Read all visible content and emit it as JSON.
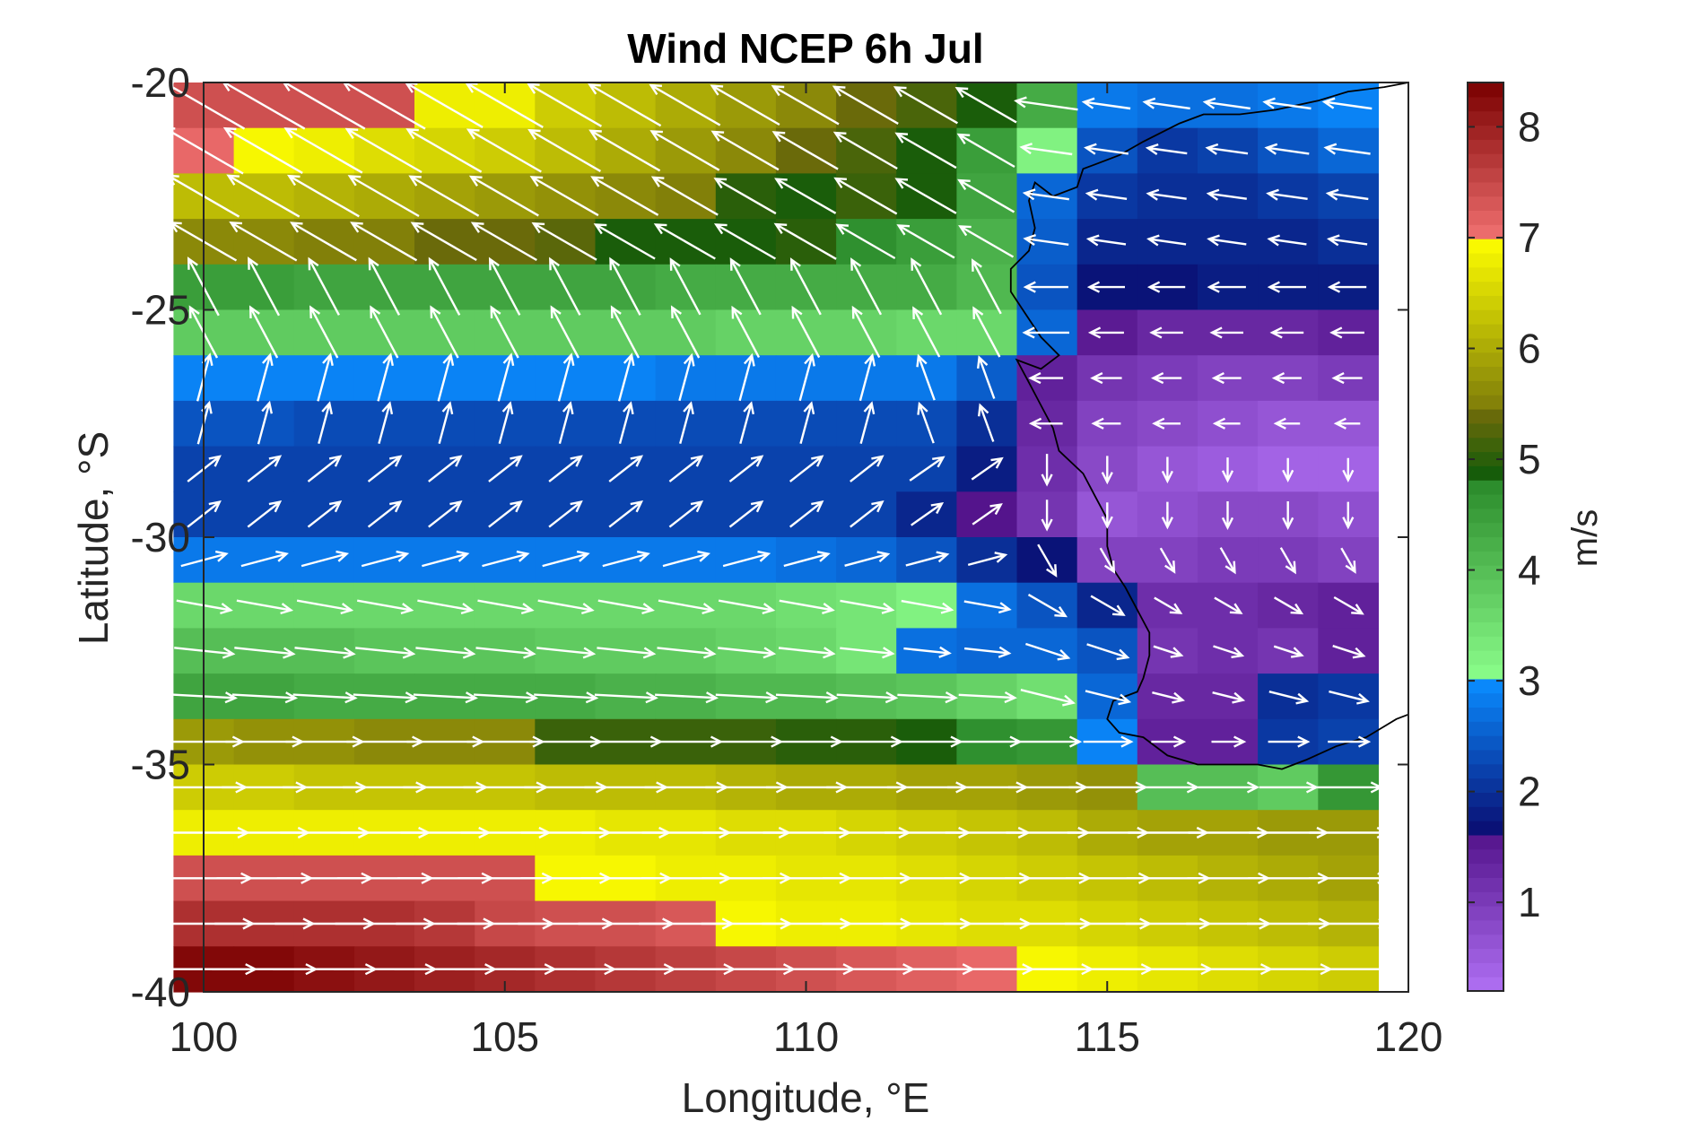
{
  "chart_data": {
    "type": "heatmap",
    "title": "Wind NCEP 6h Jul",
    "xlabel": "Longitude, °E",
    "ylabel": "Latitude, °S",
    "colorbar_label": "m/s",
    "xlim": [
      100,
      120
    ],
    "ylim": [
      -40,
      -20
    ],
    "xticks": [
      100,
      105,
      110,
      115,
      120
    ],
    "yticks": [
      -20,
      -25,
      -30,
      -35,
      -40
    ],
    "xtick_labels": [
      "100",
      "105",
      "110",
      "115",
      "120"
    ],
    "ytick_labels": [
      "-20",
      "-25",
      "-30",
      "-35",
      "-40"
    ],
    "colorbar_range": [
      0.2,
      8.4
    ],
    "colorbar_ticks": [
      1,
      2,
      3,
      4,
      5,
      6,
      7,
      8
    ],
    "colorbar_tick_labels": [
      "1",
      "2",
      "3",
      "4",
      "5",
      "6",
      "7",
      "8"
    ],
    "colormap": [
      {
        "from": 0.2,
        "to": 1.6,
        "start": "#b070f4",
        "end": "#54148c"
      },
      {
        "from": 1.6,
        "to": 3.0,
        "start": "#0a0a6e",
        "end": "#0a8cff"
      },
      {
        "from": 3.0,
        "to": 4.8,
        "start": "#8cff8c",
        "end": "#2a8a2a"
      },
      {
        "from": 4.8,
        "to": 5.4,
        "start": "#0a5a0a",
        "end": "#6a6a0a"
      },
      {
        "from": 5.4,
        "to": 7.0,
        "start": "#7a780a",
        "end": "#ffff00"
      },
      {
        "from": 7.0,
        "to": 8.4,
        "start": "#f07070",
        "end": "#7a0000"
      }
    ],
    "grid_lon": [
      100,
      101,
      102,
      103,
      104,
      105,
      106,
      107,
      108,
      109,
      110,
      111,
      112,
      113,
      114,
      115,
      116,
      117,
      118,
      119
    ],
    "grid_lat": [
      -20.5,
      -21.5,
      -22.5,
      -23.5,
      -24.5,
      -25.5,
      -26.5,
      -27.5,
      -28.5,
      -29.5,
      -30.5,
      -31.5,
      -32.5,
      -33.5,
      -34.5,
      -35.5,
      -36.5,
      -37.5,
      -38.5,
      -39.5
    ],
    "speed_rows": [
      [
        7.4,
        7.4,
        7.4,
        7.4,
        6.8,
        6.8,
        6.4,
        6.2,
        6.0,
        5.8,
        5.6,
        5.4,
        5.2,
        4.9,
        4.3,
        2.8,
        2.7,
        2.7,
        2.8,
        2.9
      ],
      [
        7.1,
        6.9,
        6.8,
        6.6,
        6.5,
        6.4,
        6.2,
        6.0,
        5.8,
        5.6,
        5.4,
        5.2,
        4.9,
        4.5,
        3.2,
        2.4,
        2.1,
        2.2,
        2.4,
        2.6
      ],
      [
        6.2,
        6.2,
        6.1,
        6.0,
        5.9,
        5.8,
        5.7,
        5.6,
        5.5,
        5.0,
        4.9,
        5.1,
        4.9,
        4.4,
        2.6,
        2.1,
        2.0,
        2.0,
        2.1,
        2.2
      ],
      [
        5.6,
        5.6,
        5.5,
        5.5,
        5.4,
        5.4,
        5.3,
        4.9,
        4.9,
        4.9,
        5.0,
        4.7,
        4.5,
        4.2,
        2.5,
        1.9,
        1.9,
        1.9,
        1.9,
        2.0
      ],
      [
        4.5,
        4.5,
        4.4,
        4.4,
        4.4,
        4.4,
        4.4,
        4.4,
        4.3,
        4.3,
        4.3,
        4.3,
        4.3,
        4.1,
        2.4,
        1.7,
        1.7,
        1.8,
        1.8,
        1.8
      ],
      [
        3.8,
        3.8,
        3.8,
        3.8,
        3.8,
        3.8,
        3.8,
        3.8,
        3.8,
        3.7,
        3.7,
        3.7,
        3.6,
        3.6,
        2.6,
        1.5,
        1.3,
        1.3,
        1.3,
        1.4
      ],
      [
        2.9,
        2.9,
        2.9,
        2.9,
        2.9,
        2.9,
        2.9,
        2.9,
        2.8,
        2.8,
        2.8,
        2.8,
        2.8,
        2.5,
        1.4,
        1.1,
        1.0,
        0.9,
        0.9,
        1.0
      ],
      [
        2.4,
        2.4,
        2.3,
        2.3,
        2.3,
        2.3,
        2.3,
        2.3,
        2.3,
        2.3,
        2.3,
        2.3,
        2.3,
        2.0,
        1.3,
        0.9,
        0.8,
        0.7,
        0.6,
        0.6
      ],
      [
        2.2,
        2.2,
        2.2,
        2.2,
        2.2,
        2.2,
        2.2,
        2.2,
        2.2,
        2.2,
        2.2,
        2.2,
        2.2,
        1.8,
        1.2,
        0.8,
        0.6,
        0.5,
        0.4,
        0.4
      ],
      [
        2.2,
        2.2,
        2.2,
        2.2,
        2.2,
        2.2,
        2.2,
        2.2,
        2.2,
        2.2,
        2.2,
        2.2,
        1.9,
        1.6,
        1.1,
        0.6,
        0.7,
        0.8,
        0.8,
        0.7
      ],
      [
        2.8,
        2.8,
        2.8,
        2.8,
        2.8,
        2.8,
        2.8,
        2.8,
        2.8,
        2.8,
        2.7,
        2.6,
        2.4,
        2.0,
        1.7,
        0.9,
        0.9,
        1.0,
        1.0,
        0.9
      ],
      [
        3.6,
        3.6,
        3.6,
        3.6,
        3.6,
        3.6,
        3.6,
        3.6,
        3.6,
        3.6,
        3.5,
        3.4,
        3.2,
        2.7,
        2.4,
        1.9,
        1.2,
        1.2,
        1.3,
        1.4
      ],
      [
        4.0,
        4.0,
        4.0,
        3.9,
        3.9,
        3.9,
        3.8,
        3.8,
        3.8,
        3.7,
        3.6,
        3.4,
        2.7,
        2.6,
        2.6,
        2.4,
        1.1,
        1.2,
        1.1,
        1.4
      ],
      [
        4.4,
        4.4,
        4.3,
        4.3,
        4.3,
        4.3,
        4.3,
        4.2,
        4.2,
        4.1,
        4.1,
        4.0,
        3.9,
        3.7,
        3.5,
        2.6,
        1.3,
        1.3,
        2.0,
        2.1
      ],
      [
        5.8,
        5.7,
        5.7,
        5.6,
        5.6,
        5.6,
        5.1,
        5.1,
        5.1,
        5.1,
        5.0,
        5.0,
        4.9,
        4.7,
        4.6,
        2.9,
        1.4,
        1.4,
        2.1,
        2.2
      ],
      [
        6.4,
        6.4,
        6.3,
        6.3,
        6.3,
        6.3,
        6.2,
        6.2,
        6.2,
        6.1,
        6.0,
        6.0,
        5.9,
        5.9,
        5.8,
        5.7,
        4.0,
        4.0,
        3.8,
        4.6
      ],
      [
        6.8,
        6.8,
        6.8,
        6.8,
        6.8,
        6.8,
        6.8,
        6.7,
        6.7,
        6.6,
        6.6,
        6.5,
        6.4,
        6.3,
        6.2,
        6.0,
        5.9,
        5.9,
        5.8,
        5.8
      ],
      [
        7.4,
        7.4,
        7.4,
        7.4,
        7.4,
        7.4,
        6.9,
        6.9,
        6.8,
        6.8,
        6.7,
        6.7,
        6.6,
        6.5,
        6.4,
        6.3,
        6.2,
        6.1,
        6.0,
        5.9
      ],
      [
        7.8,
        7.8,
        7.8,
        7.8,
        7.7,
        7.5,
        7.4,
        7.4,
        7.3,
        6.9,
        6.8,
        6.8,
        6.7,
        6.6,
        6.6,
        6.5,
        6.4,
        6.3,
        6.2,
        6.1
      ],
      [
        8.3,
        8.3,
        8.2,
        8.1,
        8.0,
        7.9,
        7.8,
        7.7,
        7.6,
        7.5,
        7.4,
        7.3,
        7.2,
        7.1,
        6.9,
        6.8,
        6.7,
        6.6,
        6.5,
        6.4
      ]
    ],
    "coastline": [
      [
        120.0,
        -20.0
      ],
      [
        119.6,
        -20.1
      ],
      [
        119.0,
        -20.2
      ],
      [
        118.5,
        -20.4
      ],
      [
        117.8,
        -20.6
      ],
      [
        117.2,
        -20.7
      ],
      [
        116.6,
        -20.7
      ],
      [
        116.2,
        -20.9
      ],
      [
        115.6,
        -21.3
      ],
      [
        115.2,
        -21.6
      ],
      [
        114.8,
        -21.8
      ],
      [
        114.6,
        -21.9
      ],
      [
        114.5,
        -22.3
      ],
      [
        114.1,
        -22.5
      ],
      [
        113.8,
        -22.2
      ],
      [
        113.7,
        -22.6
      ],
      [
        113.8,
        -23.2
      ],
      [
        113.7,
        -23.7
      ],
      [
        113.4,
        -24.1
      ],
      [
        113.4,
        -24.6
      ],
      [
        113.6,
        -25.0
      ],
      [
        113.9,
        -25.6
      ],
      [
        114.2,
        -26.0
      ],
      [
        113.9,
        -26.3
      ],
      [
        113.5,
        -26.1
      ],
      [
        113.7,
        -26.6
      ],
      [
        113.9,
        -27.1
      ],
      [
        114.1,
        -27.6
      ],
      [
        114.2,
        -28.1
      ],
      [
        114.6,
        -28.6
      ],
      [
        114.8,
        -29.1
      ],
      [
        115.0,
        -29.6
      ],
      [
        115.0,
        -30.2
      ],
      [
        115.1,
        -30.7
      ],
      [
        115.3,
        -31.1
      ],
      [
        115.5,
        -31.6
      ],
      [
        115.7,
        -32.1
      ],
      [
        115.7,
        -32.6
      ],
      [
        115.6,
        -33.1
      ],
      [
        115.5,
        -33.4
      ],
      [
        115.1,
        -33.6
      ],
      [
        115.0,
        -34.0
      ],
      [
        115.2,
        -34.3
      ],
      [
        115.6,
        -34.4
      ],
      [
        116.0,
        -34.8
      ],
      [
        116.5,
        -35.0
      ],
      [
        117.0,
        -35.0
      ],
      [
        117.5,
        -35.0
      ],
      [
        117.9,
        -35.1
      ],
      [
        118.3,
        -34.9
      ],
      [
        118.8,
        -34.6
      ],
      [
        119.3,
        -34.4
      ],
      [
        119.8,
        -34.0
      ],
      [
        120.0,
        -33.9
      ]
    ]
  }
}
